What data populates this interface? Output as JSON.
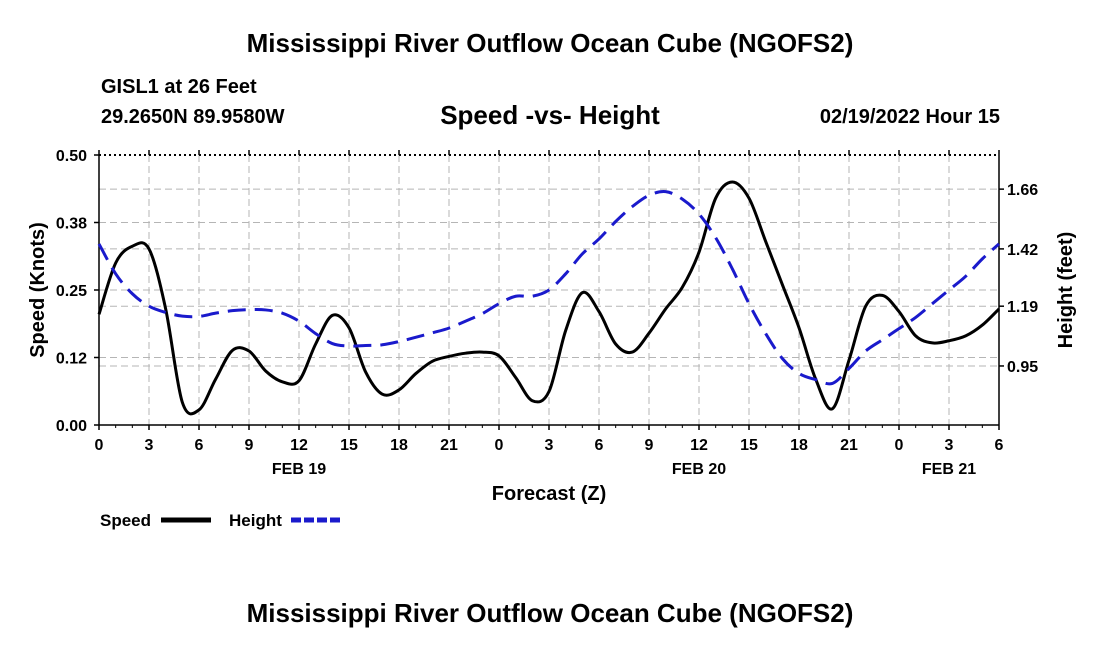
{
  "header": {
    "title": "Mississippi River Outflow Ocean Cube (NGOFS2)",
    "station": "GISL1 at 26 Feet",
    "coords": "29.2650N  89.9580W",
    "subtitle": "Speed -vs- Height",
    "datetime": "02/19/2022 Hour 15"
  },
  "footer": {
    "title": "Mississippi River Outflow Ocean Cube (NGOFS2)"
  },
  "chart_data": {
    "type": "line",
    "title": "Speed -vs- Height",
    "xlabel": "Forecast (Z)",
    "ylabel": "Speed (Knots)",
    "y2label": "Height (feet)",
    "x_range": [
      0,
      54
    ],
    "ylim": [
      0,
      0.5
    ],
    "y2lim": [
      0.713,
      1.797
    ],
    "x_ticks": [
      0,
      3,
      6,
      9,
      12,
      15,
      18,
      21,
      24,
      27,
      30,
      33,
      36,
      39,
      42,
      45,
      48,
      51,
      54
    ],
    "x_tick_labels": [
      "0",
      "3",
      "6",
      "9",
      "12",
      "15",
      "18",
      "21",
      "0",
      "3",
      "6",
      "9",
      "12",
      "15",
      "18",
      "21",
      "0",
      "3",
      "6"
    ],
    "date_labels": [
      {
        "x": 12,
        "label": "FEB 19"
      },
      {
        "x": 36,
        "label": "FEB 20"
      },
      {
        "x": 51,
        "label": "FEB 21"
      }
    ],
    "y_ticks": [
      0,
      0.125,
      0.25,
      0.375,
      0.5
    ],
    "y_tick_labels": [
      "0.00",
      "0.12",
      "0.25",
      "0.38",
      "0.50"
    ],
    "y2_ticks": [
      0.95,
      1.19,
      1.42,
      1.66
    ],
    "y2_tick_labels": [
      "0.95",
      "1.19",
      "1.42",
      "1.66"
    ],
    "grid": true,
    "legend_position": "bottom-left",
    "series": [
      {
        "name": "Speed",
        "axis": "left",
        "color": "#000000",
        "style": "solid",
        "x": [
          0,
          1,
          2,
          3,
          4,
          5,
          6,
          7,
          8,
          9,
          10,
          11,
          12,
          13,
          14,
          15,
          16,
          17,
          18,
          19,
          20,
          21,
          22,
          23,
          24,
          25,
          26,
          27,
          28,
          29,
          30,
          31,
          32,
          33,
          34,
          35,
          36,
          37,
          38,
          39,
          40,
          41,
          42,
          43,
          44,
          45,
          46,
          47,
          48,
          49,
          50,
          51,
          52,
          53,
          54
        ],
        "values": [
          0.205,
          0.3,
          0.331,
          0.326,
          0.215,
          0.042,
          0.028,
          0.085,
          0.138,
          0.137,
          0.1,
          0.08,
          0.082,
          0.15,
          0.203,
          0.18,
          0.098,
          0.057,
          0.065,
          0.095,
          0.118,
          0.127,
          0.133,
          0.135,
          0.128,
          0.088,
          0.045,
          0.062,
          0.175,
          0.245,
          0.21,
          0.15,
          0.135,
          0.17,
          0.215,
          0.255,
          0.32,
          0.42,
          0.45,
          0.42,
          0.34,
          0.26,
          0.18,
          0.085,
          0.03,
          0.12,
          0.22,
          0.24,
          0.21,
          0.165,
          0.152,
          0.156,
          0.165,
          0.185,
          0.215
        ]
      },
      {
        "name": "Height",
        "axis": "right",
        "color": "#1a1acc",
        "style": "dashed",
        "x": [
          0,
          1,
          2,
          3,
          4,
          5,
          6,
          7,
          8,
          9,
          10,
          11,
          12,
          13,
          14,
          15,
          16,
          17,
          18,
          19,
          20,
          21,
          22,
          23,
          24,
          25,
          26,
          27,
          28,
          29,
          30,
          31,
          32,
          33,
          34,
          35,
          36,
          37,
          38,
          39,
          40,
          41,
          42,
          43,
          44,
          45,
          46,
          47,
          48,
          49,
          50,
          51,
          52,
          53,
          54
        ],
        "values": [
          1.44,
          1.32,
          1.24,
          1.19,
          1.165,
          1.15,
          1.149,
          1.162,
          1.172,
          1.176,
          1.175,
          1.162,
          1.13,
          1.08,
          1.04,
          1.03,
          1.032,
          1.035,
          1.048,
          1.065,
          1.083,
          1.102,
          1.13,
          1.16,
          1.2,
          1.23,
          1.23,
          1.255,
          1.32,
          1.4,
          1.46,
          1.53,
          1.59,
          1.635,
          1.65,
          1.62,
          1.56,
          1.465,
          1.34,
          1.2,
          1.08,
          0.98,
          0.92,
          0.895,
          0.88,
          0.94,
          1.01,
          1.055,
          1.1,
          1.145,
          1.2,
          1.255,
          1.31,
          1.38,
          1.44
        ]
      }
    ]
  }
}
